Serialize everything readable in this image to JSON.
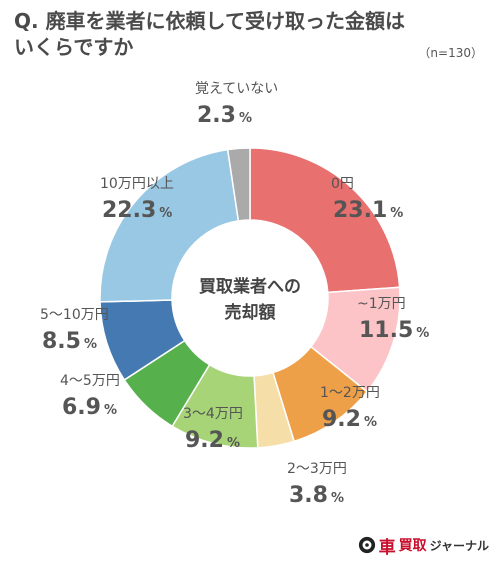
{
  "title": {
    "line1": "Q. 廃車を業者に依頼して受け取った金額は",
    "line2": "いくらですか",
    "sample": "（n=130）"
  },
  "chart_data": {
    "type": "pie",
    "center_label": [
      "買取業者への",
      "売却額"
    ],
    "slices": [
      {
        "label": "0円",
        "value": 23.1,
        "color": "#e8706f"
      },
      {
        "label": "~1万円",
        "value": 11.5,
        "color": "#fcc4c6"
      },
      {
        "label": "1〜2万円",
        "value": 9.2,
        "color": "#eea049"
      },
      {
        "label": "2〜3万円",
        "value": 3.8,
        "color": "#f5dea8"
      },
      {
        "label": "3〜4万円",
        "value": 9.2,
        "color": "#a6d477"
      },
      {
        "label": "4〜5万円",
        "value": 6.9,
        "color": "#56b04c"
      },
      {
        "label": "5〜10万円",
        "value": 8.5,
        "color": "#4479b2"
      },
      {
        "label": "10万円以上",
        "value": 22.3,
        "color": "#98c8e3"
      },
      {
        "label": "覚えていない",
        "value": 2.3,
        "color": "#aaaaaa"
      }
    ],
    "unit": "%"
  },
  "logo": {
    "mark": "車",
    "main": "買取",
    "sub": "ジャーナル"
  }
}
